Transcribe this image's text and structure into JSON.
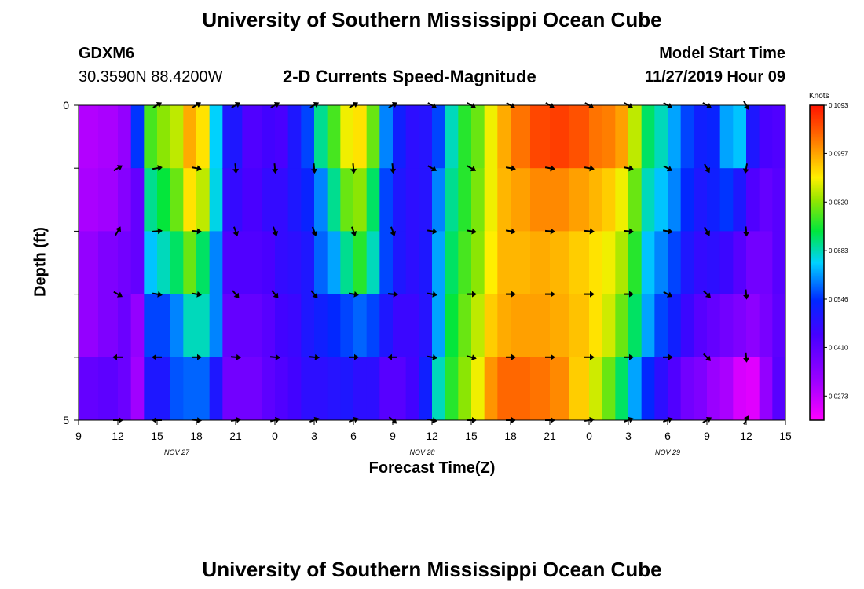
{
  "header": {
    "title_top": "University of Southern Mississippi Ocean Cube",
    "station_id": "GDXM6",
    "station_coords": "30.3590N 88.4200W",
    "plot_title": "2-D Currents Speed-Magnitude",
    "model_start_label": "Model Start Time",
    "model_start_value": "11/27/2019 Hour 09",
    "title_bottom": "University of Southern Mississippi Ocean Cube"
  },
  "chart_data": {
    "type": "heatmap",
    "xlabel": "Forecast Time(Z)",
    "ylabel": "Depth (ft)",
    "x_ticks": [
      "9",
      "12",
      "15",
      "18",
      "21",
      "0",
      "3",
      "6",
      "9",
      "12",
      "15",
      "18",
      "21",
      "0",
      "3",
      "6",
      "9",
      "12",
      "15"
    ],
    "date_labels": [
      {
        "label": "NOV 27",
        "tick_index": 2.5
      },
      {
        "label": "NOV 28",
        "tick_index": 8.75
      },
      {
        "label": "NOV 29",
        "tick_index": 15
      }
    ],
    "y_ticks": [
      "0",
      "",
      "",
      "",
      "",
      "5"
    ],
    "ylim": [
      0,
      5
    ],
    "colorbar": {
      "units": "Knots",
      "labels": [
        "0.1093",
        "0.0957",
        "0.0820",
        "0.0683",
        "0.0546",
        "0.0410",
        "0.0273"
      ],
      "min": 0.0205,
      "max": 0.1093
    },
    "time_start_hours": 9,
    "time_end_hours": 63,
    "depth_rows": 5,
    "speed_columns": [
      {
        "t": 9,
        "s": [
          0.029,
          0.03,
          0.033,
          0.033,
          0.04
        ]
      },
      {
        "t": 10.5,
        "s": [
          0.03,
          0.031,
          0.036,
          0.036,
          0.041
        ]
      },
      {
        "t": 12,
        "s": [
          0.033,
          0.035,
          0.038,
          0.039,
          0.039
        ]
      },
      {
        "t": 13,
        "s": [
          0.055,
          0.04,
          0.04,
          0.033,
          0.031
        ]
      },
      {
        "t": 14,
        "s": [
          0.078,
          0.07,
          0.064,
          0.056,
          0.05
        ]
      },
      {
        "t": 15,
        "s": [
          0.082,
          0.074,
          0.068,
          0.056,
          0.05
        ]
      },
      {
        "t": 16,
        "s": [
          0.085,
          0.08,
          0.072,
          0.06,
          0.057
        ]
      },
      {
        "t": 17,
        "s": [
          0.095,
          0.09,
          0.08,
          0.068,
          0.058
        ]
      },
      {
        "t": 18,
        "s": [
          0.09,
          0.085,
          0.072,
          0.068,
          0.058
        ]
      },
      {
        "t": 19,
        "s": [
          0.065,
          0.066,
          0.06,
          0.06,
          0.05
        ]
      },
      {
        "t": 20,
        "s": [
          0.05,
          0.047,
          0.043,
          0.04,
          0.038
        ]
      },
      {
        "t": 21.5,
        "s": [
          0.043,
          0.044,
          0.043,
          0.04,
          0.038
        ]
      },
      {
        "t": 23,
        "s": [
          0.045,
          0.047,
          0.044,
          0.042,
          0.041
        ]
      },
      {
        "t": 24,
        "s": [
          0.044,
          0.047,
          0.047,
          0.045,
          0.043
        ]
      },
      {
        "t": 25,
        "s": [
          0.05,
          0.05,
          0.048,
          0.046,
          0.045
        ]
      },
      {
        "t": 26,
        "s": [
          0.056,
          0.053,
          0.05,
          0.05,
          0.048
        ]
      },
      {
        "t": 27,
        "s": [
          0.07,
          0.06,
          0.058,
          0.052,
          0.048
        ]
      },
      {
        "t": 28,
        "s": [
          0.078,
          0.07,
          0.062,
          0.054,
          0.049
        ]
      },
      {
        "t": 29,
        "s": [
          0.088,
          0.08,
          0.07,
          0.056,
          0.05
        ]
      },
      {
        "t": 30,
        "s": [
          0.09,
          0.082,
          0.076,
          0.058,
          0.048
        ]
      },
      {
        "t": 31,
        "s": [
          0.08,
          0.072,
          0.068,
          0.056,
          0.048
        ]
      },
      {
        "t": 32,
        "s": [
          0.06,
          0.056,
          0.056,
          0.05,
          0.042
        ]
      },
      {
        "t": 33,
        "s": [
          0.052,
          0.05,
          0.05,
          0.046,
          0.042
        ]
      },
      {
        "t": 34,
        "s": [
          0.048,
          0.048,
          0.048,
          0.046,
          0.045
        ]
      },
      {
        "t": 35,
        "s": [
          0.049,
          0.049,
          0.05,
          0.049,
          0.052
        ]
      },
      {
        "t": 36,
        "s": [
          0.056,
          0.06,
          0.062,
          0.062,
          0.068
        ]
      },
      {
        "t": 37,
        "s": [
          0.068,
          0.07,
          0.072,
          0.074,
          0.076
        ]
      },
      {
        "t": 38,
        "s": [
          0.076,
          0.076,
          0.078,
          0.08,
          0.082
        ]
      },
      {
        "t": 39,
        "s": [
          0.08,
          0.081,
          0.082,
          0.085,
          0.088
        ]
      },
      {
        "t": 40,
        "s": [
          0.088,
          0.088,
          0.089,
          0.092,
          0.097
        ]
      },
      {
        "t": 41,
        "s": [
          0.095,
          0.094,
          0.094,
          0.095,
          0.101
        ]
      },
      {
        "t": 42,
        "s": [
          0.1,
          0.096,
          0.094,
          0.096,
          0.101
        ]
      },
      {
        "t": 43.5,
        "s": [
          0.104,
          0.098,
          0.095,
          0.096,
          0.1
        ]
      },
      {
        "t": 45,
        "s": [
          0.105,
          0.098,
          0.094,
          0.095,
          0.098
        ]
      },
      {
        "t": 46.5,
        "s": [
          0.103,
          0.096,
          0.092,
          0.093,
          0.092
        ]
      },
      {
        "t": 48,
        "s": [
          0.1,
          0.094,
          0.09,
          0.09,
          0.086
        ]
      },
      {
        "t": 49,
        "s": [
          0.099,
          0.092,
          0.088,
          0.086,
          0.08
        ]
      },
      {
        "t": 50,
        "s": [
          0.096,
          0.088,
          0.084,
          0.08,
          0.072
        ]
      },
      {
        "t": 51,
        "s": [
          0.085,
          0.08,
          0.076,
          0.072,
          0.062
        ]
      },
      {
        "t": 52,
        "s": [
          0.072,
          0.068,
          0.064,
          0.062,
          0.054
        ]
      },
      {
        "t": 53,
        "s": [
          0.068,
          0.064,
          0.06,
          0.056,
          0.048
        ]
      },
      {
        "t": 54,
        "s": [
          0.062,
          0.06,
          0.056,
          0.052,
          0.043
        ]
      },
      {
        "t": 55,
        "s": [
          0.056,
          0.054,
          0.05,
          0.046,
          0.038
        ]
      },
      {
        "t": 56,
        "s": [
          0.052,
          0.05,
          0.047,
          0.042,
          0.036
        ]
      },
      {
        "t": 57,
        "s": [
          0.053,
          0.052,
          0.048,
          0.04,
          0.032
        ]
      },
      {
        "t": 58,
        "s": [
          0.062,
          0.055,
          0.046,
          0.038,
          0.03
        ]
      },
      {
        "t": 59,
        "s": [
          0.064,
          0.05,
          0.042,
          0.036,
          0.025
        ]
      },
      {
        "t": 60,
        "s": [
          0.05,
          0.043,
          0.038,
          0.034,
          0.024
        ]
      },
      {
        "t": 61,
        "s": [
          0.044,
          0.04,
          0.038,
          0.037,
          0.033
        ]
      },
      {
        "t": 62,
        "s": [
          0.043,
          0.042,
          0.042,
          0.041,
          0.042
        ]
      }
    ],
    "arrow_times": [
      12,
      15,
      18,
      21,
      24,
      27,
      30,
      33,
      36,
      39,
      42,
      45,
      48,
      51,
      54,
      57,
      60
    ],
    "arrow_depths": [
      0,
      1,
      2,
      3,
      4,
      5
    ],
    "arrow_directions_deg": [
      [
        null,
        60,
        60,
        60,
        60,
        60,
        60,
        60,
        120,
        120,
        120,
        120,
        120,
        120,
        120,
        120,
        150
      ],
      [
        60,
        80,
        100,
        175,
        175,
        175,
        175,
        175,
        120,
        120,
        100,
        100,
        100,
        100,
        120,
        150,
        190
      ],
      [
        30,
        85,
        95,
        160,
        160,
        160,
        160,
        160,
        100,
        100,
        100,
        95,
        95,
        95,
        100,
        150,
        175
      ],
      [
        120,
        100,
        100,
        140,
        140,
        140,
        100,
        95,
        100,
        90,
        90,
        90,
        90,
        90,
        120,
        135,
        175
      ],
      [
        270,
        270,
        90,
        95,
        95,
        95,
        90,
        270,
        100,
        105,
        90,
        90,
        90,
        90,
        90,
        135,
        175
      ],
      [
        90,
        270,
        95,
        80,
        75,
        70,
        70,
        130,
        100,
        90,
        90,
        90,
        80,
        70,
        70,
        60,
        30
      ]
    ]
  }
}
